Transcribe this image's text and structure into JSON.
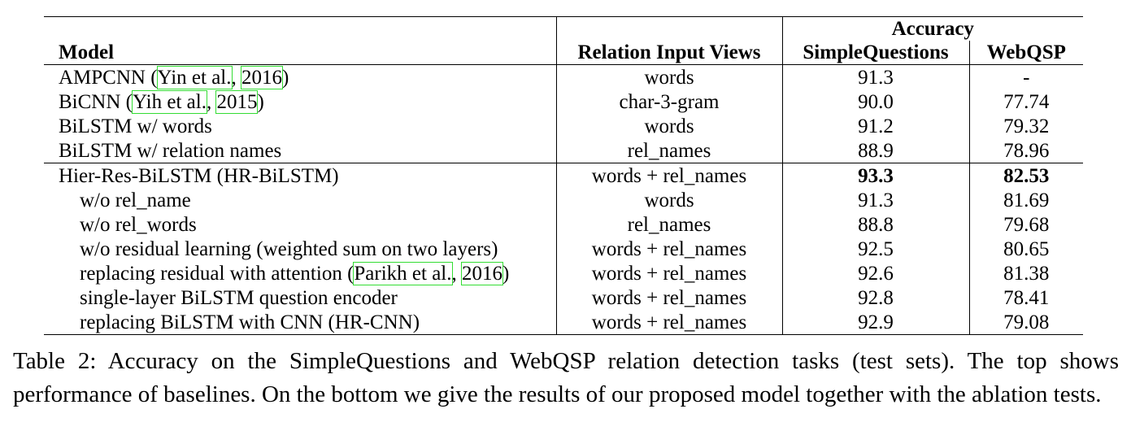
{
  "table": {
    "group_header": "Accuracy",
    "columns": [
      "Model",
      "Relation Input Views",
      "SimpleQuestions",
      "WebQSP"
    ],
    "baselines": [
      {
        "model_pre": "AMPCNN (",
        "cite_a": "Yin et al.",
        "sep": ", ",
        "cite_b": "2016",
        "model_post": ")",
        "views": "words",
        "sq": "91.3",
        "wq": "-"
      },
      {
        "model_pre": "BiCNN (",
        "cite_a": "Yih et al.",
        "sep": ", ",
        "cite_b": "2015",
        "model_post": ")",
        "views": "char-3-gram",
        "sq": "90.0",
        "wq": "77.74"
      },
      {
        "model": "BiLSTM w/ words",
        "views": "words",
        "sq": "91.2",
        "wq": "79.32"
      },
      {
        "model": "BiLSTM w/ relation names",
        "views": "rel_names",
        "sq": "88.9",
        "wq": "78.96"
      }
    ],
    "proposed": [
      {
        "model": "Hier-Res-BiLSTM (HR-BiLSTM)",
        "views": "words + rel_names",
        "sq": "93.3",
        "wq": "82.53"
      },
      {
        "model": "w/o rel_name",
        "views": "words",
        "sq": "91.3",
        "wq": "81.69"
      },
      {
        "model": "w/o rel_words",
        "views": "rel_names",
        "sq": "88.8",
        "wq": "79.68"
      },
      {
        "model": "w/o residual learning (weighted sum on two layers)",
        "views": "words + rel_names",
        "sq": "92.5",
        "wq": "80.65"
      },
      {
        "model_pre": "replacing residual with attention (",
        "cite_a": "Parikh et al.",
        "sep": ", ",
        "cite_b": "2016",
        "model_post": ")",
        "views": "words + rel_names",
        "sq": "92.6",
        "wq": "81.38"
      },
      {
        "model": "single-layer BiLSTM question encoder",
        "views": "words + rel_names",
        "sq": "92.8",
        "wq": "78.41"
      },
      {
        "model": "replacing BiLSTM with CNN (HR-CNN)",
        "views": "words + rel_names",
        "sq": "92.9",
        "wq": "79.08"
      }
    ]
  },
  "caption": "Table 2: Accuracy on the SimpleQuestions and WebQSP relation detection tasks (test sets). The top shows performance of baselines. On the bottom we give the results of our proposed model together with the ablation tests."
}
